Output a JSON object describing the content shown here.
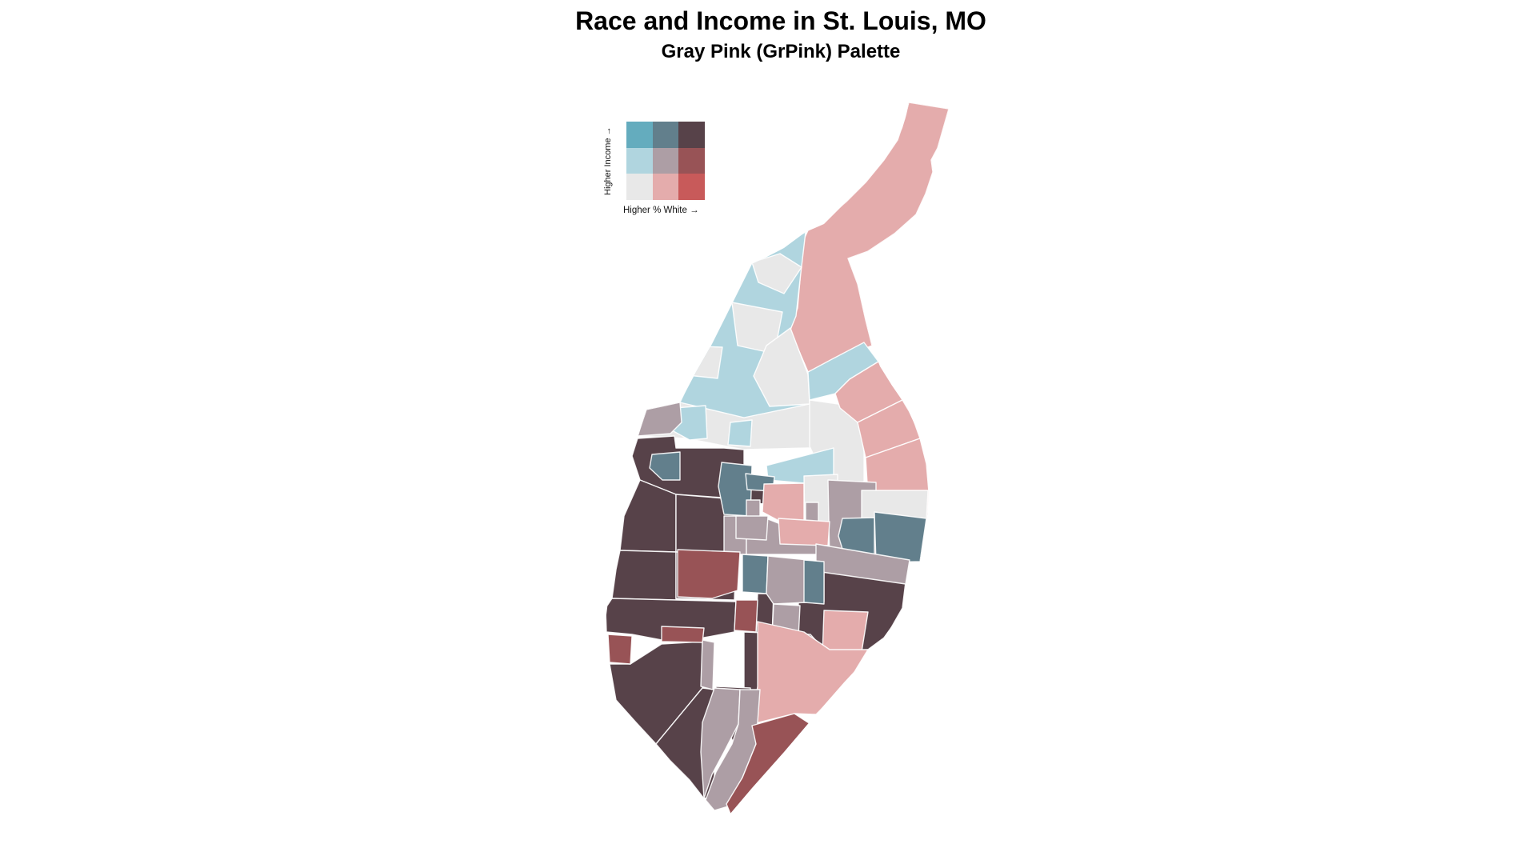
{
  "header": {
    "title": "Race and Income in St. Louis, MO",
    "subtitle": "Gray Pink (GrPink) Palette"
  },
  "legend": {
    "y_axis_label": "Higher Income  →",
    "x_axis_label": "Higher % White  →",
    "rows": [
      [
        "1-3",
        "2-3",
        "3-3"
      ],
      [
        "1-2",
        "2-2",
        "3-2"
      ],
      [
        "1-1",
        "2-1",
        "3-1"
      ]
    ]
  },
  "palette": {
    "1-1": "#E8E8E8",
    "2-1": "#E4ACAC",
    "3-1": "#C85A5A",
    "1-2": "#B0D5DF",
    "2-2": "#AD9EA5",
    "3-2": "#985356",
    "1-3": "#64ACBE",
    "2-3": "#627F8C",
    "3-3": "#574249"
  },
  "map": {
    "name": "st-louis-census-tracts-bivariate-choropleth",
    "tract_border_color": "#FFFFFF",
    "boundary": "1136,128 1186,136 1172,185 1164,200 1166,215 1157,242 1145,268 1118,292 1085,314 1060,323 1072,355 1082,400 1090,432 1100,458 1115,482 1133,508 1150,545 1158,580 1162,615 1158,655 1150,700 1138,740 1120,775 1095,810 1055,853 1020,893 980,940 940,985 912,1018 903,1033 893,1012 880,998 862,975 837,950 820,933 803,917 787,897 770,877 760,860 755,810 758,768 764,720 771,672 778,640 784,606 790,572 797,548 808,512 850,503 870,465 890,430 910,390 930,350 940,330 957,322 980,310 1007,290 1030,280 1042,268 1055,255 1068,242 1080,228 1095,210 1108,195 1120,178 1128,160 1133,143",
    "tracts": [
      {
        "c": "2-1",
        "p": "1136,128 1186,136 1172,185 1164,200 1166,215 1157,242 1145,268 1118,292 1085,314 1060,323 1072,355 1082,400 1090,432 1038,452 1010,465 995,430 988,412 997,385 1000,350 1000,310 1010,288 1035,272 1058,252 1082,228 1105,200 1122,175 1131,148"
      },
      {
        "c": "1-2",
        "p": "930,333 1007,290 1000,350 995,395 988,412 995,430 1010,465 1012,505 930,525 855,508 850,503"
      },
      {
        "c": "1-1",
        "p": "940,328 975,317 1002,334 980,367 948,353"
      },
      {
        "c": "1-1",
        "p": "915,378 978,390 968,442 922,432"
      },
      {
        "c": "1-1",
        "p": "988,410 1010,468 1012,505 962,508 942,470 958,432"
      },
      {
        "c": "1-1",
        "p": "852,432 903,434 897,473 850,468"
      },
      {
        "c": "1-1",
        "p": "808,512 850,503 930,522 1012,505 1045,508 1047,560 1010,560 930,562 858,548 797,545"
      },
      {
        "c": "1-2",
        "p": "843,510 882,507 884,548 862,550 840,538"
      },
      {
        "c": "1-2",
        "p": "913,528 940,525 938,558 910,556"
      },
      {
        "c": "2-2",
        "p": "850,503 808,512 797,545 838,542 852,528"
      },
      {
        "c": "1-1",
        "p": "1012,500 1048,505 1075,530 1080,565 1080,612 1037,610 1012,558"
      },
      {
        "c": "1-2",
        "p": "1010,465 1038,450 1080,428 1098,452 1062,474 1044,492 1012,500"
      },
      {
        "c": "2-1",
        "p": "1044,492 1062,474 1098,452 1110,470 1128,500 1072,528 1050,510"
      },
      {
        "c": "2-1",
        "p": "1072,528 1128,500 1140,520 1150,548 1082,572"
      },
      {
        "c": "2-1",
        "p": "1082,572 1150,548 1158,580 1161,615 1159,648 1085,620"
      },
      {
        "c": "3-3",
        "p": "790,570 797,548 843,545 845,560 905,560 930,562 930,625 903,622 845,618 800,600"
      },
      {
        "c": "3-3",
        "p": "800,600 845,618 845,690 775,688 780,645"
      },
      {
        "c": "3-3",
        "p": "845,618 930,625 930,690 845,690"
      },
      {
        "c": "3-3",
        "p": "775,688 845,690 845,750 765,748 770,712"
      },
      {
        "c": "3-3",
        "p": "845,690 920,692 918,750 845,748"
      },
      {
        "c": "3-3",
        "p": "765,748 920,752 918,790 880,797 827,800 790,793 758,790 757,760"
      },
      {
        "c": "3-3",
        "p": "762,830 788,830 827,805 878,802 878,860 820,930 795,903 770,875"
      },
      {
        "c": "3-3",
        "p": "878,860 893,862 893,995 880,998 862,975 837,950 820,930"
      },
      {
        "c": "3-3",
        "p": "923,610 958,612 956,630 925,628"
      },
      {
        "c": "3-3",
        "p": "947,742 967,742 965,795 945,792"
      },
      {
        "c": "3-3",
        "p": "1030,700 1135,703 1128,760 1108,795 1085,812 1032,820 998,818 998,752 1030,752"
      },
      {
        "c": "3-3",
        "p": "930,790 1013,793 1040,823 1020,868 938,878 930,860"
      },
      {
        "c": "3-3",
        "p": "895,858 938,860 940,905 923,940 905,905 893,903"
      },
      {
        "c": "1-2",
        "p": "958,582 1042,560 1042,602 1005,604 960,600"
      },
      {
        "c": "2-3",
        "p": "815,568 850,565 850,600 828,600 812,585"
      },
      {
        "c": "2-3",
        "p": "902,578 940,582 938,645 905,643 898,608"
      },
      {
        "c": "2-3",
        "p": "932,592 968,596 966,614 934,612"
      },
      {
        "c": "2-1",
        "p": "955,605 1005,604 1005,658 983,656 953,640"
      },
      {
        "c": "1-1",
        "p": "1005,595 1047,593 1047,655 1006,657"
      },
      {
        "c": "2-2",
        "p": "905,645 933,645 933,693 905,693"
      },
      {
        "c": "2-2",
        "p": "933,625 950,625 950,645 983,658 1007,657 1007,628 1023,628 1023,693 933,693"
      },
      {
        "c": "2-2",
        "p": "1035,600 1095,603 1095,700 1037,700"
      },
      {
        "c": "1-1",
        "p": "1077,613 1160,613 1158,650 1077,650"
      },
      {
        "c": "2-3",
        "p": "1053,648 1093,647 1093,702 1057,699 1048,670"
      },
      {
        "c": "2-3",
        "p": "1093,640 1158,648 1150,702 1095,703"
      },
      {
        "c": "2-1",
        "p": "973,648 1037,652 1035,682 975,680"
      },
      {
        "c": "2-2",
        "p": "1020,680 1137,700 1132,730 1020,714"
      },
      {
        "c": "2-2",
        "p": "920,645 960,645 958,675 920,673"
      },
      {
        "c": "2-3",
        "p": "928,693 960,695 958,742 928,740"
      },
      {
        "c": "2-2",
        "p": "960,695 1010,700 1008,753 967,755 958,742"
      },
      {
        "c": "2-3",
        "p": "1005,700 1030,702 1030,755 1005,753"
      },
      {
        "c": "3-2",
        "p": "847,687 925,690 922,738 890,748 847,746"
      },
      {
        "c": "3-2",
        "p": "920,750 947,750 945,790 918,788"
      },
      {
        "c": "2-2",
        "p": "967,755 1000,757 998,797 965,795"
      },
      {
        "c": "2-1",
        "p": "1030,763 1085,765 1077,815 1040,825 1028,818"
      },
      {
        "c": "2-1",
        "p": "947,777 1005,790 1037,812 1085,812 1060,853 1020,893 993,892 940,905 947,858"
      },
      {
        "c": "2-2",
        "p": "878,800 893,803 891,862 876,858"
      },
      {
        "c": "3-2",
        "p": "827,783 880,785 878,803 827,802"
      },
      {
        "c": "3-2",
        "p": "760,793 790,795 788,830 762,828"
      },
      {
        "c": "2-2",
        "p": "893,860 925,862 923,905 905,940 890,968 880,998 876,940 878,903"
      },
      {
        "c": "2-2",
        "p": "925,862 950,862 945,930 928,972 910,1008 893,1013 882,1000 895,965 915,930 923,905"
      },
      {
        "c": "3-2",
        "p": "940,907 993,892 1013,905 985,950 950,1000 928,1028 915,1022 908,1005 928,972 945,930"
      }
    ]
  }
}
